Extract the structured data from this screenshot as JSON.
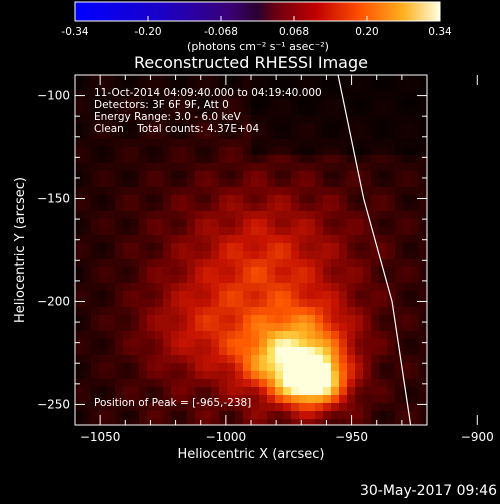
{
  "chart_data": {
    "type": "heatmap",
    "title": "Reconstructed RHESSI Image",
    "xlabel": "Heliocentric X (arcsec)",
    "ylabel": "Heliocentric Y (arcsec)",
    "xlim": [
      -1060,
      -920
    ],
    "ylim": [
      -260,
      -90
    ],
    "xticks": [
      -1050,
      -1000,
      -950,
      -900
    ],
    "yticks": [
      -100,
      -150,
      -200,
      -250
    ],
    "colorbar": {
      "min": -0.34,
      "max": 0.34,
      "ticks": [
        "-0.34",
        "-0.20",
        "-0.068",
        "0.068",
        "0.20",
        "0.34"
      ],
      "label": "(photons cm⁻² s⁻¹ asec⁻²)"
    },
    "info_lines": [
      "11-Oct-2014 04:09:40.000 to 04:19:40.000",
      "Detectors: 3F 6F 9F, Att 0",
      "Energy Range: 3.0 - 6.0 keV",
      "Clean    Total counts: 4.37E+04"
    ],
    "peak_label": "Position of Peak = [-965,-238]",
    "peak": {
      "x": -965,
      "y": -238
    },
    "limb_curve": [
      [
        -957.4,
        -78
      ],
      [
        -945.2,
        -150
      ],
      [
        -933.9,
        -200
      ],
      [
        -925.9,
        -265
      ]
    ],
    "sources": [
      {
        "x": -966,
        "y": -238,
        "amp": 0.34,
        "sigma": 9
      },
      {
        "x": -968,
        "y": -219,
        "amp": 0.15,
        "sigma": 13
      },
      {
        "x": -983,
        "y": -229,
        "amp": 0.12,
        "sigma": 11
      },
      {
        "x": -985,
        "y": -185,
        "amp": 0.1,
        "sigma": 22
      },
      {
        "x": -1010,
        "y": -215,
        "amp": 0.07,
        "sigma": 16
      }
    ],
    "diffuse_level": 0.028
  },
  "footer": {
    "date": "30-May-2017 09:46"
  }
}
